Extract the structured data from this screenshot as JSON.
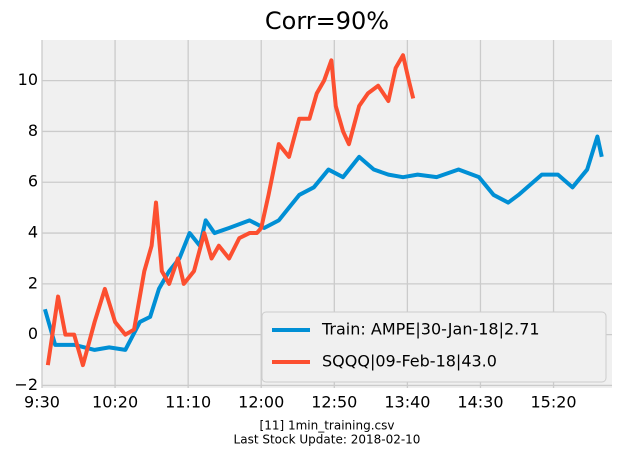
{
  "chart_data": {
    "type": "line",
    "title": "Corr=90%",
    "footnotes": [
      "[11] 1min_training.csv",
      "Last Stock Update: 2018-02-10"
    ],
    "xlim": [
      0,
      390
    ],
    "xticks": [
      {
        "value": 0,
        "label": "9:30"
      },
      {
        "value": 50,
        "label": "10:20"
      },
      {
        "value": 100,
        "label": "11:10"
      },
      {
        "value": 150,
        "label": "12:00"
      },
      {
        "value": 200,
        "label": "12:50"
      },
      {
        "value": 250,
        "label": "13:40"
      },
      {
        "value": 300,
        "label": "14:30"
      },
      {
        "value": 350,
        "label": "15:20"
      }
    ],
    "ylim": [
      -2.1,
      11.6
    ],
    "yticks": [
      {
        "value": -2,
        "label": "−2"
      },
      0,
      2,
      4,
      6,
      8,
      10
    ],
    "grid": true,
    "legend": "lower right",
    "series": [
      {
        "name": "Train: AMPE|30-Jan-18|2.71",
        "color": "#008fd5",
        "x": [
          2,
          9,
          22,
          36,
          46,
          57,
          67,
          74,
          80,
          87,
          94,
          101,
          108,
          112,
          118,
          128,
          142,
          152,
          162,
          169,
          176,
          186,
          196,
          206,
          217,
          227,
          237,
          247,
          257,
          270,
          285,
          299,
          309,
          319,
          326,
          336,
          342,
          353,
          363,
          373,
          380,
          383
        ],
        "values": [
          1.0,
          -0.4,
          -0.4,
          -0.6,
          -0.5,
          -0.6,
          0.5,
          0.7,
          1.8,
          2.5,
          3.0,
          4.0,
          3.5,
          4.5,
          4.0,
          4.2,
          4.5,
          4.2,
          4.5,
          5.0,
          5.5,
          5.8,
          6.5,
          6.2,
          7.0,
          6.5,
          6.3,
          6.2,
          6.3,
          6.2,
          6.5,
          6.2,
          5.5,
          5.2,
          5.5,
          6.0,
          6.3,
          6.3,
          5.8,
          6.5,
          7.8,
          7.0
        ]
      },
      {
        "name": "SQQQ|09-Feb-18|43.0",
        "color": "#fc4f30",
        "x": [
          4,
          11,
          16,
          22,
          28,
          36,
          43,
          50,
          57,
          63,
          70,
          75,
          78,
          82,
          87,
          93,
          97,
          104,
          111,
          116,
          121,
          128,
          135,
          142,
          147,
          150,
          155,
          162,
          169,
          176,
          183,
          188,
          193,
          198,
          201,
          206,
          210,
          217,
          223,
          230,
          237,
          242,
          247,
          251,
          254
        ],
        "values": [
          -1.2,
          1.5,
          0.0,
          0.0,
          -1.2,
          0.5,
          1.8,
          0.5,
          0.0,
          0.2,
          2.5,
          3.5,
          5.2,
          2.5,
          2.0,
          3.0,
          2.0,
          2.5,
          4.0,
          3.0,
          3.5,
          3.0,
          3.8,
          4.0,
          4.0,
          4.2,
          5.5,
          7.5,
          7.0,
          8.5,
          8.5,
          9.5,
          10.0,
          10.8,
          9.0,
          8.0,
          7.5,
          9.0,
          9.5,
          9.8,
          9.2,
          10.5,
          11.0,
          10.0,
          9.3
        ]
      }
    ]
  }
}
